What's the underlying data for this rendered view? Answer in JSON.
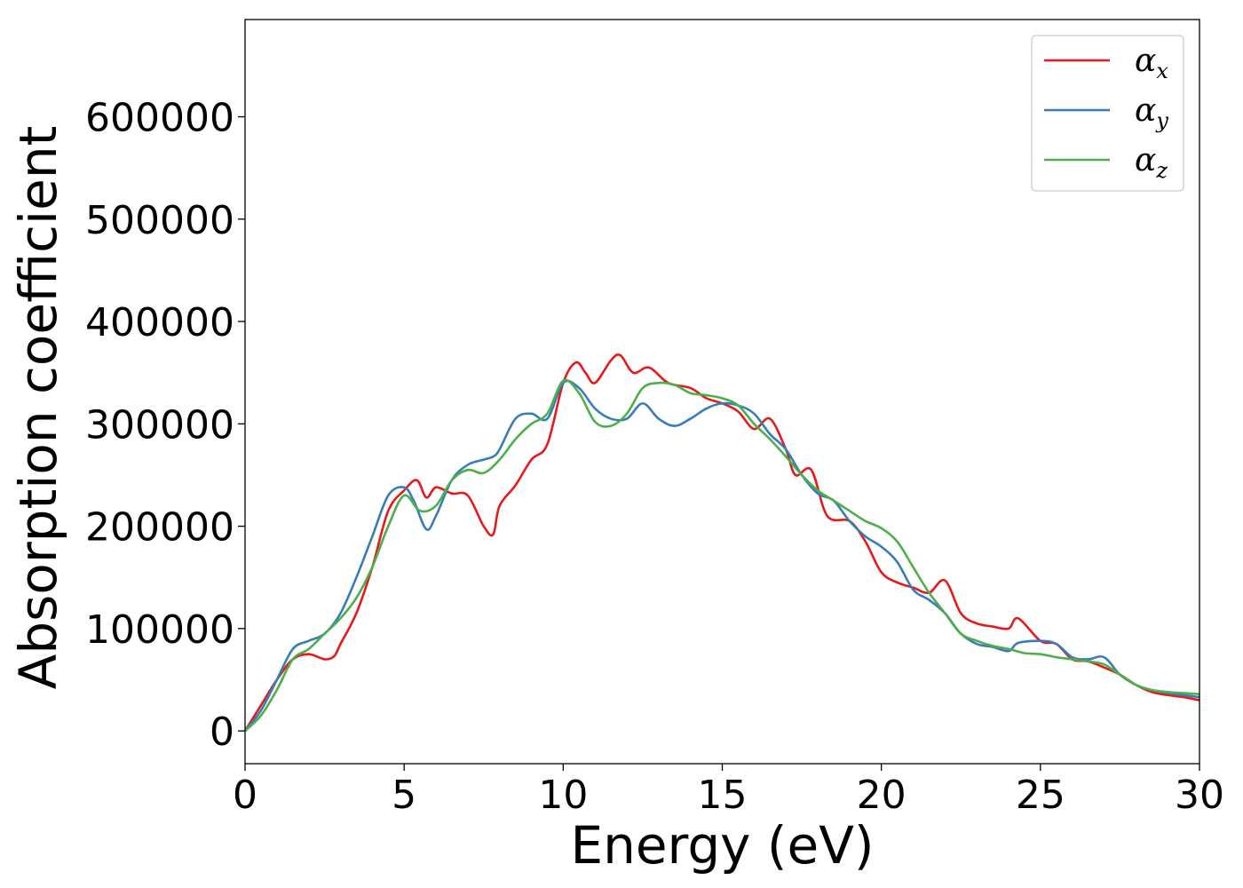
{
  "chart_data": {
    "type": "line",
    "title": "",
    "xlabel": "Energy (eV)",
    "ylabel": "Absorption coefficient",
    "xlim": [
      0,
      30
    ],
    "ylim": [
      -32000,
      695000
    ],
    "xticks": [
      0,
      5,
      10,
      15,
      20,
      25,
      30
    ],
    "yticks": [
      0,
      100000,
      200000,
      300000,
      400000,
      500000,
      600000
    ],
    "xtick_labels": [
      "0",
      "5",
      "10",
      "15",
      "20",
      "25",
      "30"
    ],
    "ytick_labels": [
      "0",
      "100000",
      "200000",
      "300000",
      "400000",
      "500000",
      "600000"
    ],
    "grid": false,
    "legend_position": "top-right",
    "series": [
      {
        "name": "α_x",
        "symbol": "α",
        "subscript": "x",
        "color": "#e41a1c",
        "x": [
          0,
          0.5,
          1,
          1.5,
          2,
          2.5,
          2.8,
          3,
          3.5,
          4,
          4.5,
          5,
          5.4,
          5.7,
          6,
          6.5,
          7,
          7.5,
          7.8,
          8,
          8.5,
          9,
          9.5,
          10,
          10.4,
          10.7,
          11,
          11.5,
          11.8,
          12.2,
          12.7,
          13.3,
          14,
          14.5,
          15,
          15.5,
          16,
          16.5,
          17,
          17.3,
          17.8,
          18.3,
          19,
          19.5,
          20,
          20.5,
          21,
          21.5,
          22,
          22.5,
          23,
          23.5,
          24,
          24.3,
          25,
          25.5,
          26,
          26.5,
          27,
          27.5,
          28,
          28.5,
          29,
          29.5,
          30
        ],
        "y": [
          0,
          25000,
          50000,
          70000,
          75000,
          70000,
          73000,
          85000,
          115000,
          160000,
          215000,
          235000,
          245000,
          228000,
          238000,
          232000,
          230000,
          200000,
          192000,
          220000,
          240000,
          265000,
          280000,
          340000,
          360000,
          350000,
          340000,
          362000,
          367000,
          350000,
          355000,
          340000,
          335000,
          325000,
          320000,
          312000,
          295000,
          305000,
          275000,
          250000,
          255000,
          210000,
          205000,
          185000,
          155000,
          145000,
          140000,
          135000,
          147000,
          115000,
          105000,
          102000,
          100000,
          110000,
          88000,
          85000,
          70000,
          68000,
          62000,
          55000,
          45000,
          38000,
          35000,
          33000,
          30000
        ]
      },
      {
        "name": "α_y",
        "symbol": "α",
        "subscript": "y",
        "color": "#377eb8",
        "x": [
          0,
          0.5,
          1,
          1.5,
          2,
          2.5,
          3,
          3.5,
          4,
          4.5,
          5,
          5.3,
          5.7,
          6,
          6.5,
          7,
          7.5,
          7.8,
          8,
          8.5,
          9,
          9.5,
          10,
          10.5,
          11,
          11.5,
          12,
          12.5,
          13,
          13.5,
          14,
          14.5,
          15,
          15.5,
          16,
          16.5,
          17,
          17.5,
          18,
          18.5,
          19,
          19.5,
          20,
          20.5,
          21,
          21.5,
          22,
          22.5,
          23,
          23.5,
          24,
          24.3,
          25,
          25.5,
          26,
          26.5,
          27,
          27.5,
          28,
          28.5,
          29,
          29.5,
          30
        ],
        "y": [
          0,
          20000,
          50000,
          80000,
          88000,
          95000,
          115000,
          150000,
          190000,
          230000,
          238000,
          225000,
          197000,
          210000,
          245000,
          260000,
          265000,
          268000,
          275000,
          305000,
          310000,
          305000,
          340000,
          335000,
          315000,
          305000,
          305000,
          320000,
          305000,
          298000,
          305000,
          315000,
          320000,
          318000,
          310000,
          290000,
          275000,
          250000,
          232000,
          225000,
          205000,
          190000,
          180000,
          165000,
          138000,
          128000,
          115000,
          95000,
          85000,
          82000,
          78000,
          86000,
          88000,
          85000,
          72000,
          70000,
          72000,
          55000,
          45000,
          40000,
          37000,
          35000,
          33000
        ]
      },
      {
        "name": "α_z",
        "symbol": "α",
        "subscript": "z",
        "color": "#4daf4a",
        "x": [
          0,
          0.5,
          1,
          1.5,
          2,
          2.5,
          3,
          3.5,
          4,
          4.5,
          5,
          5.5,
          6,
          6.5,
          7,
          7.5,
          8,
          8.5,
          9,
          9.5,
          10,
          10.5,
          11,
          11.5,
          12,
          12.5,
          13,
          13.5,
          14,
          14.5,
          15,
          15.5,
          16,
          16.5,
          17,
          17.5,
          18,
          18.5,
          19,
          19.5,
          20,
          20.5,
          21,
          21.5,
          22,
          22.5,
          23,
          23.5,
          24,
          24.5,
          25,
          25.5,
          26,
          26.5,
          27,
          27.5,
          28,
          28.5,
          29,
          29.5,
          30
        ],
        "y": [
          0,
          15000,
          40000,
          70000,
          80000,
          95000,
          110000,
          130000,
          160000,
          200000,
          230000,
          215000,
          220000,
          245000,
          255000,
          252000,
          265000,
          285000,
          300000,
          310000,
          342000,
          330000,
          302000,
          298000,
          310000,
          335000,
          340000,
          338000,
          330000,
          328000,
          325000,
          318000,
          300000,
          285000,
          268000,
          250000,
          235000,
          225000,
          215000,
          205000,
          198000,
          185000,
          160000,
          135000,
          115000,
          95000,
          88000,
          83000,
          80000,
          76000,
          75000,
          72000,
          70000,
          68000,
          65000,
          55000,
          45000,
          40000,
          38000,
          37000,
          36000
        ]
      }
    ]
  }
}
